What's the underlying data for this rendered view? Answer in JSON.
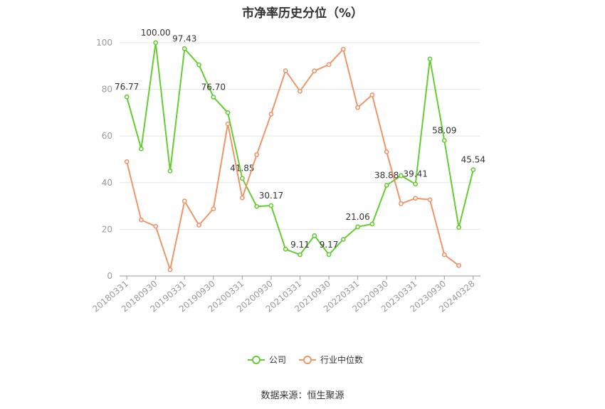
{
  "chart_data": {
    "type": "line",
    "title": "市净率历史分位（%）",
    "x_tick_labels": [
      "20180331",
      "20180930",
      "20190331",
      "20190930",
      "20200331",
      "20200930",
      "20210331",
      "20210930",
      "20220331",
      "20220930",
      "20230331",
      "20230930",
      "20240328"
    ],
    "yticks": [
      "0",
      "20",
      "40",
      "60",
      "80",
      "100"
    ],
    "ylim": [
      0,
      100
    ],
    "grid": true,
    "legend_position": "bottom-center",
    "n_points": 25,
    "series": [
      {
        "name": "公司",
        "color": "#66cc33",
        "values": [
          76.77,
          54.5,
          100.0,
          45.0,
          97.43,
          90.5,
          76.7,
          70.0,
          41.85,
          29.8,
          30.17,
          11.5,
          9.11,
          17.3,
          9.17,
          15.7,
          21.06,
          22.3,
          38.88,
          43.0,
          39.41,
          93.0,
          58.09,
          20.8,
          45.54
        ],
        "labels": {
          "0": "76.77",
          "2": "100.00",
          "4": "97.43",
          "6": "76.70",
          "8": "41.85",
          "10": "30.17",
          "12": "9.11",
          "14": "9.17",
          "16": "21.06",
          "18": "38.88",
          "20": "39.41",
          "22": "58.09",
          "24": "45.54"
        }
      },
      {
        "name": "行业中位数",
        "color": "#f0956a",
        "values": [
          49.0,
          24.0,
          21.3,
          2.7,
          32.1,
          21.8,
          28.8,
          65.2,
          33.5,
          52.0,
          69.4,
          88.0,
          79.2,
          87.9,
          90.6,
          97.2,
          72.2,
          77.6,
          53.2,
          31.0,
          33.3,
          32.7,
          9.1,
          4.5,
          null
        ]
      }
    ],
    "source": "数据来源：恒生聚源"
  }
}
